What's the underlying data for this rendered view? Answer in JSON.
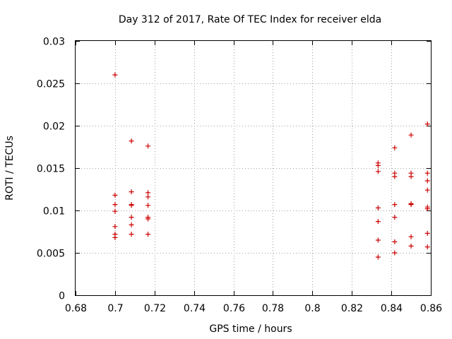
{
  "chart_data": {
    "type": "scatter",
    "title": "Day 312 of 2017, Rate Of TEC Index for receiver elda",
    "xlabel": "GPS time / hours",
    "ylabel": "ROTI / TECUs",
    "xlim": [
      0.68,
      0.86
    ],
    "ylim": [
      0,
      0.03
    ],
    "xticks": [
      "0.68",
      "0.7",
      "0.72",
      "0.74",
      "0.76",
      "0.78",
      "0.8",
      "0.82",
      "0.84",
      "0.86"
    ],
    "yticks": [
      "0",
      "0.005",
      "0.01",
      "0.015",
      "0.02",
      "0.025",
      "0.03"
    ],
    "grid": true,
    "marker": "plus",
    "color": "#cc0000",
    "points": [
      [
        0.7,
        0.026
      ],
      [
        0.7,
        0.0118
      ],
      [
        0.7,
        0.0107
      ],
      [
        0.7,
        0.0099
      ],
      [
        0.7,
        0.0081
      ],
      [
        0.7,
        0.0072
      ],
      [
        0.7,
        0.0068
      ],
      [
        0.7083,
        0.0182
      ],
      [
        0.7083,
        0.0122
      ],
      [
        0.7083,
        0.0107
      ],
      [
        0.7083,
        0.0106
      ],
      [
        0.7083,
        0.0092
      ],
      [
        0.7083,
        0.0083
      ],
      [
        0.7083,
        0.0072
      ],
      [
        0.7167,
        0.0176
      ],
      [
        0.7167,
        0.0121
      ],
      [
        0.7167,
        0.0116
      ],
      [
        0.7167,
        0.0106
      ],
      [
        0.7167,
        0.0092
      ],
      [
        0.7167,
        0.009
      ],
      [
        0.7167,
        0.0072
      ],
      [
        0.8333,
        0.0156
      ],
      [
        0.8333,
        0.0153
      ],
      [
        0.8333,
        0.0146
      ],
      [
        0.8333,
        0.0103
      ],
      [
        0.8333,
        0.0087
      ],
      [
        0.8333,
        0.0065
      ],
      [
        0.8333,
        0.0045
      ],
      [
        0.8417,
        0.0174
      ],
      [
        0.8417,
        0.0144
      ],
      [
        0.8417,
        0.014
      ],
      [
        0.8417,
        0.0107
      ],
      [
        0.8417,
        0.0092
      ],
      [
        0.8417,
        0.0063
      ],
      [
        0.8417,
        0.005
      ],
      [
        0.85,
        0.0189
      ],
      [
        0.85,
        0.0144
      ],
      [
        0.85,
        0.014
      ],
      [
        0.85,
        0.0108
      ],
      [
        0.85,
        0.0107
      ],
      [
        0.85,
        0.0069
      ],
      [
        0.85,
        0.0058
      ],
      [
        0.8583,
        0.0202
      ],
      [
        0.8583,
        0.0144
      ],
      [
        0.8583,
        0.0135
      ],
      [
        0.8583,
        0.0124
      ],
      [
        0.8583,
        0.0104
      ],
      [
        0.8583,
        0.0102
      ],
      [
        0.8583,
        0.0073
      ],
      [
        0.8583,
        0.0057
      ]
    ]
  }
}
